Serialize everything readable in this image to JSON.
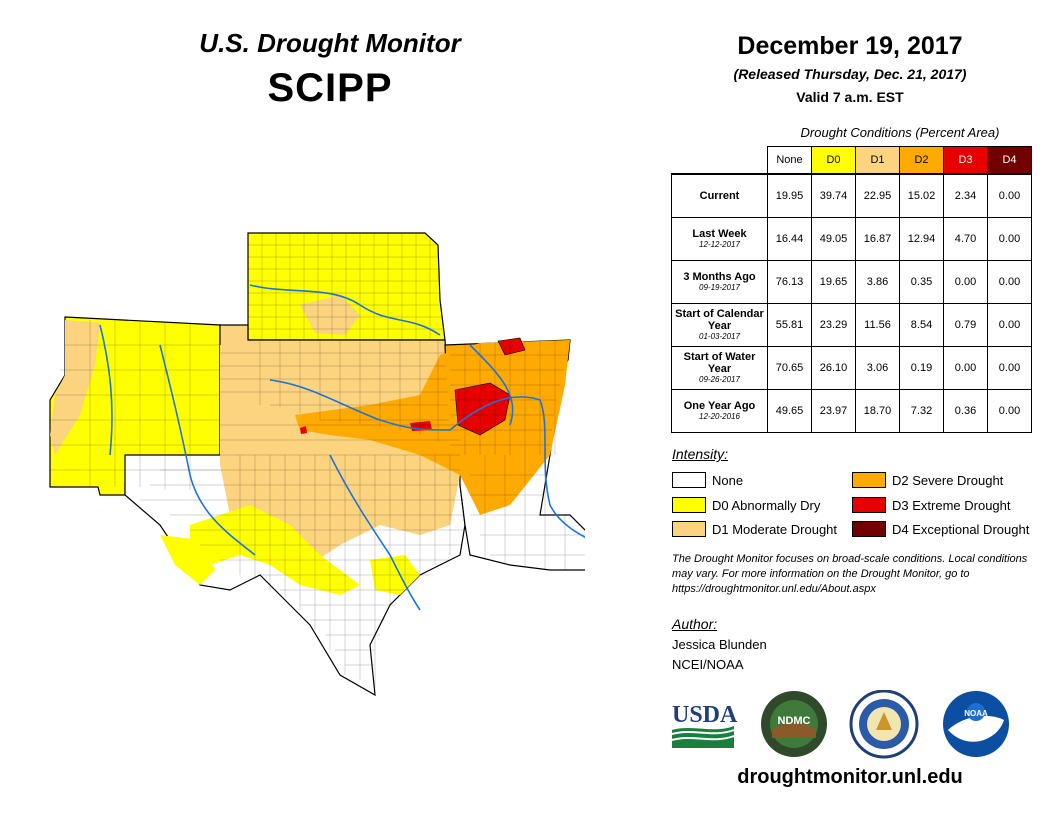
{
  "header": {
    "title": "U.S. Drought Monitor",
    "region": "SCIPP",
    "date": "December 19, 2017",
    "released": "(Released Thursday, Dec. 21, 2017)",
    "valid": "Valid 7 a.m. EST"
  },
  "table": {
    "caption": "Drought Conditions (Percent Area)",
    "columns": [
      "None",
      "D0",
      "D1",
      "D2",
      "D3",
      "D4"
    ],
    "column_colors": [
      "#ffffff",
      "#ffff00",
      "#fcd37f",
      "#ffaa00",
      "#e60000",
      "#730000"
    ],
    "column_text_colors": [
      "#000000",
      "#000000",
      "#000000",
      "#000000",
      "#ffffff",
      "#ffffff"
    ],
    "rows": [
      {
        "label": "Current",
        "sublabel": "",
        "values": [
          "19.95",
          "39.74",
          "22.95",
          "15.02",
          "2.34",
          "0.00"
        ]
      },
      {
        "label": "Last Week",
        "sublabel": "12-12-2017",
        "values": [
          "16.44",
          "49.05",
          "16.87",
          "12.94",
          "4.70",
          "0.00"
        ]
      },
      {
        "label": "3 Months Ago",
        "sublabel": "09-19-2017",
        "values": [
          "76.13",
          "19.65",
          "3.86",
          "0.35",
          "0.00",
          "0.00"
        ]
      },
      {
        "label": "Start of Calendar Year",
        "sublabel": "01-03-2017",
        "values": [
          "55.81",
          "23.29",
          "11.56",
          "8.54",
          "0.79",
          "0.00"
        ]
      },
      {
        "label": "Start of Water Year",
        "sublabel": "09-26-2017",
        "values": [
          "70.65",
          "26.10",
          "3.06",
          "0.19",
          "0.00",
          "0.00"
        ]
      },
      {
        "label": "One Year Ago",
        "sublabel": "12-20-2016",
        "values": [
          "49.65",
          "23.97",
          "18.70",
          "7.32",
          "0.36",
          "0.00"
        ]
      }
    ]
  },
  "legend": {
    "title": "Intensity:",
    "items": [
      {
        "label": "None",
        "color": "#ffffff"
      },
      {
        "label": "D0 Abnormally Dry",
        "color": "#ffff00"
      },
      {
        "label": "D1 Moderate Drought",
        "color": "#fcd37f"
      },
      {
        "label": "D2 Severe Drought",
        "color": "#ffaa00"
      },
      {
        "label": "D3 Extreme Drought",
        "color": "#e60000"
      },
      {
        "label": "D4 Exceptional Drought",
        "color": "#730000"
      }
    ]
  },
  "note": "The Drought Monitor focuses on broad-scale conditions. Local conditions may vary. For more information on the Drought Monitor, go to https://droughtmonitor.unl.edu/About.aspx",
  "author": {
    "title": "Author:",
    "name": "Jessica Blunden",
    "org": "NCEI/NOAA"
  },
  "logos": {
    "usda": "USDA",
    "ndmc": "NDMC",
    "noaa": "NOAA"
  },
  "website": "droughtmonitor.unl.edu"
}
